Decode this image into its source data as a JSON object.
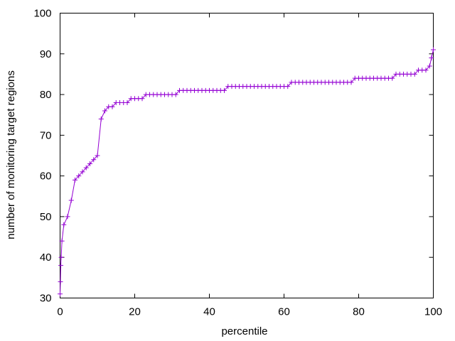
{
  "chart_data": {
    "type": "line",
    "title": "",
    "xlabel": "percentile",
    "ylabel": "number of monitoring target regions",
    "xlim": [
      0,
      100
    ],
    "ylim": [
      30,
      100
    ],
    "xticks": [
      0,
      20,
      40,
      60,
      80,
      100
    ],
    "yticks": [
      30,
      40,
      50,
      60,
      70,
      80,
      90,
      100
    ],
    "grid": false,
    "legend": "none",
    "marker": "plus",
    "line_color": "#9400d3",
    "series": [
      {
        "x": [
          0,
          0.1,
          0.2,
          0.3,
          0.5,
          1,
          2,
          3,
          4,
          5,
          6,
          7,
          8,
          9,
          10,
          11,
          12,
          13,
          14,
          15,
          16,
          17,
          18,
          19,
          20,
          21,
          22,
          23,
          24,
          25,
          26,
          27,
          28,
          29,
          30,
          31,
          32,
          33,
          34,
          35,
          36,
          37,
          38,
          39,
          40,
          41,
          42,
          43,
          44,
          45,
          46,
          47,
          48,
          49,
          50,
          51,
          52,
          53,
          54,
          55,
          56,
          57,
          58,
          59,
          60,
          61,
          62,
          63,
          64,
          65,
          66,
          67,
          68,
          69,
          70,
          71,
          72,
          73,
          74,
          75,
          76,
          77,
          78,
          79,
          80,
          81,
          82,
          83,
          84,
          85,
          86,
          87,
          88,
          89,
          90,
          91,
          92,
          93,
          94,
          95,
          96,
          97,
          98,
          99,
          99.5,
          100
        ],
        "y": [
          31,
          34,
          38,
          40,
          44,
          48,
          50,
          54,
          59,
          60,
          61,
          62,
          63,
          64,
          65,
          74,
          76,
          77,
          77,
          78,
          78,
          78,
          78,
          79,
          79,
          79,
          79,
          80,
          80,
          80,
          80,
          80,
          80,
          80,
          80,
          80,
          81,
          81,
          81,
          81,
          81,
          81,
          81,
          81,
          81,
          81,
          81,
          81,
          81,
          82,
          82,
          82,
          82,
          82,
          82,
          82,
          82,
          82,
          82,
          82,
          82,
          82,
          82,
          82,
          82,
          82,
          83,
          83,
          83,
          83,
          83,
          83,
          83,
          83,
          83,
          83,
          83,
          83,
          83,
          83,
          83,
          83,
          83,
          84,
          84,
          84,
          84,
          84,
          84,
          84,
          84,
          84,
          84,
          84,
          85,
          85,
          85,
          85,
          85,
          85,
          86,
          86,
          86,
          87,
          89,
          91
        ]
      }
    ]
  }
}
